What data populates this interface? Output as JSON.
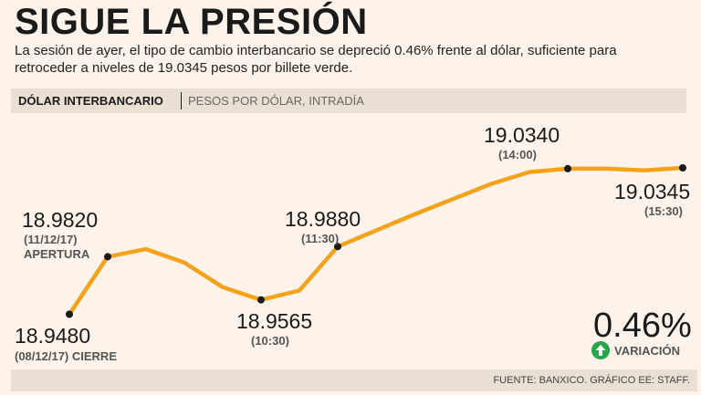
{
  "header": {
    "title": "SIGUE LA PRESIÓN",
    "subtitle": "La sesión de ayer, el tipo de cambio interbancario se depreció 0.46% frente al dólar, suficiente para retroceder a niveles de 19.0345 pesos por billete verde."
  },
  "band": {
    "label": "DÓLAR INTERBANCARIO",
    "unit": "PESOS POR DÓLAR, INTRADÍA"
  },
  "callouts": {
    "cierre": {
      "value": "18.9480",
      "sub": "(08/12/17) CIERRE"
    },
    "apertura": {
      "value": "18.9820",
      "date": "(11/12/17)",
      "sub": "APERTURA"
    },
    "t1030": {
      "value": "18.9565",
      "time": "(10:30)"
    },
    "t1130": {
      "value": "18.9880",
      "time": "(11:30)"
    },
    "t1400": {
      "value": "19.0340",
      "time": "(14:00)"
    },
    "t1530": {
      "value": "19.0345",
      "time": "(15:30)"
    }
  },
  "variation": {
    "percent": "0.46%",
    "label": "VARIACIÓN",
    "color": "#2aa64a"
  },
  "source": "FUENTE: BANXICO. GRÁFICO EE: STAFF.",
  "colors": {
    "line": "#f5a21b",
    "marker": "#1a1a1a",
    "band": "#eadfd3"
  },
  "chart_data": {
    "type": "line",
    "title": "DÓLAR INTERBANCARIO",
    "ylabel": "PESOS POR DÓLAR, INTRADÍA",
    "xlabel": "",
    "ylim": [
      18.94,
      19.04
    ],
    "series": [
      {
        "name": "Dólar interbancario",
        "values": [
          18.948,
          18.982,
          18.9865,
          18.9785,
          18.964,
          18.9565,
          18.962,
          18.988,
          18.9975,
          19.007,
          19.016,
          19.025,
          19.032,
          19.034,
          19.034,
          19.033,
          19.0345
        ]
      }
    ],
    "markers": [
      {
        "index": 0,
        "label": "18.9480"
      },
      {
        "index": 1,
        "label": "18.9820"
      },
      {
        "index": 5,
        "label": "18.9565"
      },
      {
        "index": 7,
        "label": "18.9880"
      },
      {
        "index": 13,
        "label": "19.0340"
      },
      {
        "index": 16,
        "label": "19.0345"
      }
    ]
  }
}
